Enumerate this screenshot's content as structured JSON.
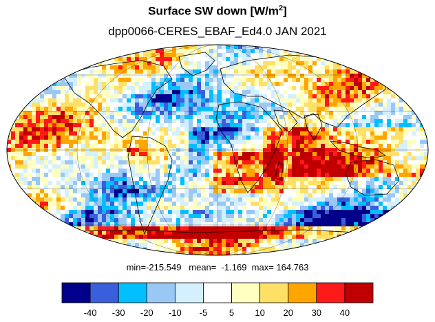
{
  "title": {
    "main": "Surface SW down [W/m",
    "superscript": "2",
    "close": "]"
  },
  "subtitle": "dpp0066-CERES_EBAF_Ed4.0  JAN 2021",
  "stats": {
    "text": "min=-215.549   mean=  -1.169  max= 164.763"
  },
  "colorbar": {
    "colors": [
      "#00008b",
      "#3a5fdc",
      "#00bfff",
      "#9ac8f5",
      "#d4f0ff",
      "#ffffff",
      "#ffffc0",
      "#ffe066",
      "#ffa500",
      "#ff1a1a",
      "#c00000"
    ],
    "labels": [
      "-40",
      "-30",
      "-20",
      "-10",
      "-5",
      "5",
      "10",
      "20",
      "30",
      "40"
    ]
  },
  "colors": {
    "background": "#ffffff",
    "coastline": "#000000",
    "gridlines": "#000000"
  }
}
